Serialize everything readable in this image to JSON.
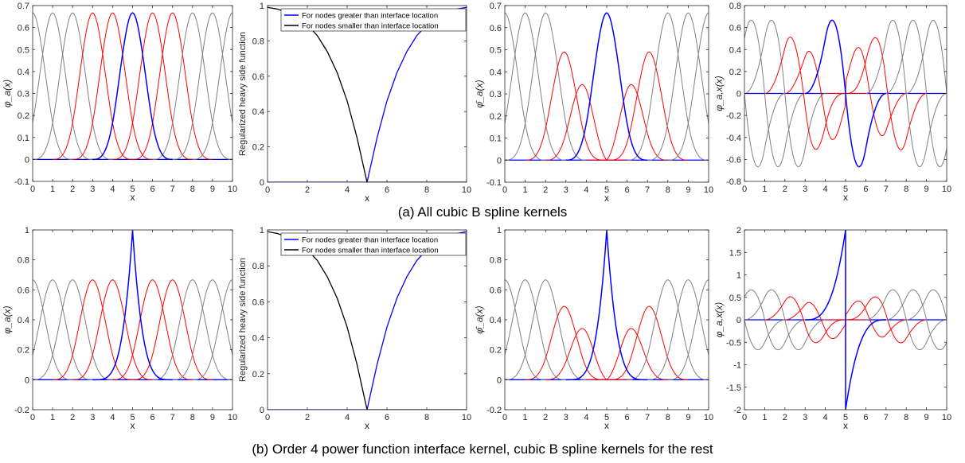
{
  "figure": {
    "caption_a": "(a) All cubic B spline kernels",
    "caption_b": "(b) Order 4 power function interface kernel, cubic B spline kernels for the rest"
  },
  "colors": {
    "blue": "#0000ff",
    "red": "#ff0000",
    "gray": "#808080",
    "black": "#000000"
  },
  "chart_data": [
    {
      "id": "a1",
      "type": "line",
      "row": "a",
      "ylabel": "φ_a(x)",
      "xlabel": "x",
      "xlim": [
        0,
        10
      ],
      "ylim": [
        -0.1,
        0.7
      ],
      "xticks": [
        0,
        1,
        2,
        3,
        4,
        5,
        6,
        7,
        8,
        9,
        10
      ],
      "yticks": [
        -0.1,
        0,
        0.1,
        0.2,
        0.3,
        0.4,
        0.5,
        0.6,
        0.7
      ],
      "ytick_labels": [
        "-0.1",
        "0",
        "0.1",
        "0.2",
        "0.3",
        "0.4",
        "0.5",
        "0.6",
        "0.7"
      ],
      "function": "cubic_b_spline_kernels",
      "support": 2,
      "nodes": [
        0,
        1,
        2,
        3,
        4,
        5,
        6,
        7,
        8,
        9,
        10
      ],
      "node_colors": [
        "gray",
        "gray",
        "gray",
        "red",
        "red",
        "blue",
        "red",
        "red",
        "gray",
        "gray",
        "gray"
      ],
      "peak_value": 0.667,
      "baseline_color": "blue"
    },
    {
      "id": "a2",
      "type": "line",
      "row": "a",
      "ylabel": "Regularized heavy side function",
      "xlabel": "x",
      "xlim": [
        0,
        10
      ],
      "ylim": [
        0,
        1
      ],
      "xticks": [
        0,
        2,
        4,
        6,
        8,
        10
      ],
      "yticks": [
        0,
        0.2,
        0.4,
        0.6,
        0.8,
        1
      ],
      "ytick_labels": [
        "0",
        "0.2",
        "0.4",
        "0.6",
        "0.8",
        "1"
      ],
      "function": "regularized_heaviside",
      "interface": 5,
      "legend": {
        "position": "top-center",
        "entries": [
          "For nodes greater than interface location",
          "For nodes smaller than interface location"
        ]
      },
      "series": [
        {
          "name": "For nodes greater than interface location",
          "color": "blue",
          "x": [
            0,
            5,
            5.5,
            6,
            6.5,
            7,
            7.5,
            8,
            8.5,
            9,
            9.5,
            10
          ],
          "y": [
            0,
            0,
            0.25,
            0.46,
            0.62,
            0.74,
            0.83,
            0.89,
            0.93,
            0.96,
            0.98,
            0.99
          ]
        },
        {
          "name": "For nodes smaller than interface location",
          "color": "black",
          "x": [
            0,
            0.5,
            1,
            1.5,
            2,
            2.5,
            3,
            3.5,
            4,
            4.5,
            5,
            10
          ],
          "y": [
            0.99,
            0.98,
            0.96,
            0.93,
            0.89,
            0.83,
            0.74,
            0.62,
            0.46,
            0.25,
            0,
            0
          ]
        }
      ]
    },
    {
      "id": "a3",
      "type": "line",
      "row": "a",
      "ylabel": "φ̄_a(x)",
      "xlabel": "x",
      "xlim": [
        0,
        10
      ],
      "ylim": [
        -0.1,
        0.7
      ],
      "xticks": [
        0,
        1,
        2,
        3,
        4,
        5,
        6,
        7,
        8,
        9,
        10
      ],
      "yticks": [
        -0.1,
        0,
        0.1,
        0.2,
        0.3,
        0.4,
        0.5,
        0.6,
        0.7
      ],
      "ytick_labels": [
        "-0.1",
        "0",
        "0.1",
        "0.2",
        "0.3",
        "0.4",
        "0.5",
        "0.6",
        "0.7"
      ],
      "function": "enriched_cubic_kernels",
      "support": 2,
      "interface": 5,
      "nodes": [
        0,
        1,
        2,
        3,
        4,
        5,
        6,
        7,
        8,
        9,
        10
      ],
      "node_colors": [
        "gray",
        "gray",
        "gray",
        "red",
        "red",
        "blue",
        "red",
        "red",
        "gray",
        "gray",
        "gray"
      ],
      "peak_value": 0.667,
      "baseline_color": "blue"
    },
    {
      "id": "a4",
      "type": "line",
      "row": "a",
      "ylabel": "φ_a,x(x)",
      "xlabel": "x",
      "xlim": [
        0,
        10
      ],
      "ylim": [
        -0.8,
        0.8
      ],
      "xticks": [
        0,
        1,
        2,
        3,
        4,
        5,
        6,
        7,
        8,
        9,
        10
      ],
      "yticks": [
        -0.8,
        -0.6,
        -0.4,
        -0.2,
        0,
        0.2,
        0.4,
        0.6,
        0.8
      ],
      "ytick_labels": [
        "-0.8",
        "-0.6",
        "-0.4",
        "-0.2",
        "0",
        "0.2",
        "0.4",
        "0.6",
        "0.8"
      ],
      "function": "enriched_cubic_derivatives",
      "support": 2,
      "interface": 5,
      "nodes": [
        0,
        1,
        2,
        3,
        4,
        5,
        6,
        7,
        8,
        9,
        10
      ],
      "node_colors": [
        "gray",
        "gray",
        "gray",
        "red",
        "red",
        "blue",
        "red",
        "red",
        "gray",
        "gray",
        "gray"
      ],
      "peak_value": 0.667,
      "baseline_color": "blue"
    },
    {
      "id": "b1",
      "type": "line",
      "row": "b",
      "ylabel": "φ_a(x)",
      "xlabel": "x",
      "xlim": [
        0,
        10
      ],
      "ylim": [
        -0.2,
        1
      ],
      "xticks": [
        0,
        1,
        2,
        3,
        4,
        5,
        6,
        7,
        8,
        9,
        10
      ],
      "yticks": [
        -0.2,
        0,
        0.2,
        0.4,
        0.6,
        0.8,
        1
      ],
      "ytick_labels": [
        "-0.2",
        "0",
        "0.2",
        "0.4",
        "0.6",
        "0.8",
        "1"
      ],
      "function": "cubic_b_spline_kernels_power_interface",
      "support": 2,
      "interface": 5,
      "power_order": 4,
      "nodes": [
        0,
        1,
        2,
        3,
        4,
        5,
        6,
        7,
        8,
        9,
        10
      ],
      "node_colors": [
        "gray",
        "gray",
        "gray",
        "red",
        "red",
        "blue",
        "red",
        "red",
        "gray",
        "gray",
        "gray"
      ],
      "peak_value": 0.667,
      "interface_peak": 1,
      "baseline_color": "blue"
    },
    {
      "id": "b2",
      "type": "line",
      "row": "b",
      "ylabel": "Regularized heavy side function",
      "xlabel": "x",
      "xlim": [
        0,
        10
      ],
      "ylim": [
        0,
        1
      ],
      "xticks": [
        0,
        2,
        4,
        6,
        8,
        10
      ],
      "yticks": [
        0,
        0.2,
        0.4,
        0.6,
        0.8,
        1
      ],
      "ytick_labels": [
        "0",
        "0.2",
        "0.4",
        "0.6",
        "0.8",
        "1"
      ],
      "function": "regularized_heaviside",
      "interface": 5,
      "legend": {
        "position": "top-center",
        "entries": [
          "For nodes greater than interface location",
          "For nodes smaller than interface location"
        ]
      },
      "series": [
        {
          "name": "For nodes greater than interface location",
          "color": "blue",
          "x": [
            0,
            5,
            5.5,
            6,
            6.5,
            7,
            7.5,
            8,
            8.5,
            9,
            9.5,
            10
          ],
          "y": [
            0,
            0,
            0.25,
            0.46,
            0.62,
            0.74,
            0.83,
            0.89,
            0.93,
            0.96,
            0.98,
            0.99
          ]
        },
        {
          "name": "For nodes smaller than interface location",
          "color": "black",
          "x": [
            0,
            0.5,
            1,
            1.5,
            2,
            2.5,
            3,
            3.5,
            4,
            4.5,
            5,
            10
          ],
          "y": [
            0.99,
            0.98,
            0.96,
            0.93,
            0.89,
            0.83,
            0.74,
            0.62,
            0.46,
            0.25,
            0,
            0
          ]
        }
      ]
    },
    {
      "id": "b3",
      "type": "line",
      "row": "b",
      "ylabel": "φ̄_a(x)",
      "xlabel": "x",
      "xlim": [
        0,
        10
      ],
      "ylim": [
        -0.2,
        1
      ],
      "xticks": [
        0,
        1,
        2,
        3,
        4,
        5,
        6,
        7,
        8,
        9,
        10
      ],
      "yticks": [
        -0.2,
        0,
        0.2,
        0.4,
        0.6,
        0.8,
        1
      ],
      "ytick_labels": [
        "-0.2",
        "0",
        "0.2",
        "0.4",
        "0.6",
        "0.8",
        "1"
      ],
      "function": "enriched_kernels_power_interface",
      "support": 2,
      "interface": 5,
      "power_order": 4,
      "nodes": [
        0,
        1,
        2,
        3,
        4,
        5,
        6,
        7,
        8,
        9,
        10
      ],
      "node_colors": [
        "gray",
        "gray",
        "gray",
        "red",
        "red",
        "blue",
        "red",
        "red",
        "gray",
        "gray",
        "gray"
      ],
      "peak_value": 0.667,
      "interface_peak": 1,
      "baseline_color": "blue"
    },
    {
      "id": "b4",
      "type": "line",
      "row": "b",
      "ylabel": "φ_a,x(x)",
      "xlabel": "x",
      "xlim": [
        0,
        10
      ],
      "ylim": [
        -2,
        2
      ],
      "xticks": [
        0,
        1,
        2,
        3,
        4,
        5,
        6,
        7,
        8,
        9,
        10
      ],
      "yticks": [
        -2,
        -1.5,
        -1,
        -0.5,
        0,
        0.5,
        1,
        1.5,
        2
      ],
      "ytick_labels": [
        "-2",
        "-1.5",
        "-1",
        "-0.5",
        "0",
        "0.5",
        "1",
        "1.5",
        "2"
      ],
      "function": "enriched_derivatives_power_interface",
      "support": 2,
      "interface": 5,
      "power_order": 4,
      "nodes": [
        0,
        1,
        2,
        3,
        4,
        5,
        6,
        7,
        8,
        9,
        10
      ],
      "node_colors": [
        "gray",
        "gray",
        "gray",
        "red",
        "red",
        "blue",
        "red",
        "red",
        "gray",
        "gray",
        "gray"
      ],
      "peak_value": 0.667,
      "interface_slope": 2,
      "baseline_color": "blue"
    }
  ]
}
